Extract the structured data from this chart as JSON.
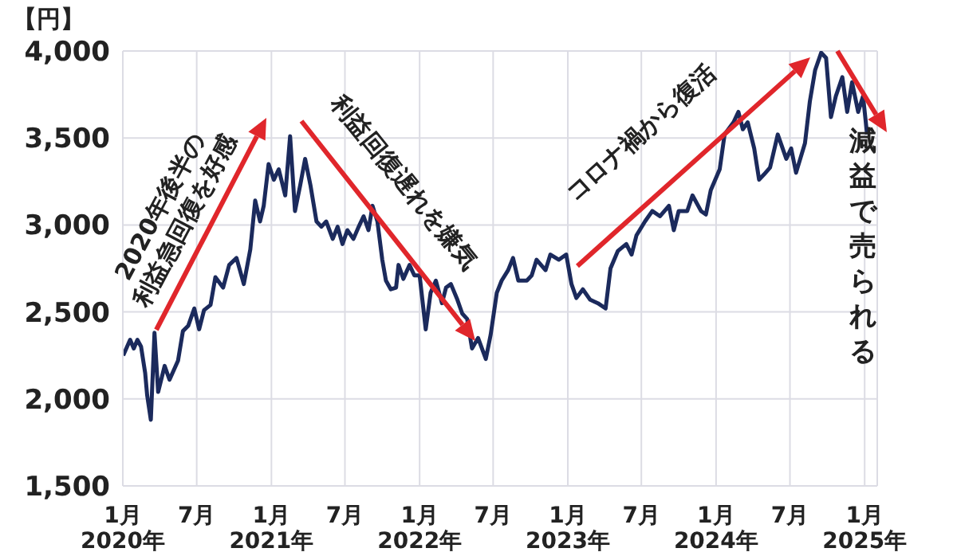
{
  "chart_data": {
    "type": "line",
    "ylabel": "【円】",
    "annotations": [
      "2020年後半の\n利益急回復を好感",
      {
        "text": "利益回復遅れを嫌気",
        "x": "2021-10-13",
        "y": 2970
      },
      "コロナ禍から復活",
      "減益で売られる"
    ],
    "x": [
      "2020-01-02",
      "2020-01-19",
      "2020-01-28",
      "2020-02-06",
      "2020-02-15",
      "2020-02-25",
      "2020-03-01",
      "2020-03-10",
      "2020-03-19",
      "2020-03-28",
      "2020-04-13",
      "2020-04-25",
      "2020-05-16",
      "2020-05-28",
      "2020-06-10",
      "2020-06-25",
      "2020-07-07",
      "2020-07-19",
      "2020-08-04",
      "2020-08-16",
      "2020-09-04",
      "2020-09-19",
      "2020-10-07",
      "2020-10-25",
      "2020-11-10",
      "2020-11-22",
      "2020-12-04",
      "2020-12-13",
      "2020-12-25",
      "2021-01-07",
      "2021-01-19",
      "2021-02-04",
      "2021-02-16",
      "2021-02-28",
      "2021-03-13",
      "2021-03-25",
      "2021-04-07",
      "2021-04-22",
      "2021-05-04",
      "2021-05-16",
      "2021-06-01",
      "2021-06-13",
      "2021-06-25",
      "2021-07-07",
      "2021-07-22",
      "2021-08-04",
      "2021-08-16",
      "2021-08-28",
      "2021-09-07",
      "2021-09-19",
      "2021-10-01",
      "2021-10-10",
      "2021-10-22",
      "2021-11-04",
      "2021-11-10",
      "2021-11-22",
      "2021-12-07",
      "2021-12-19",
      "2022-01-01",
      "2022-01-16",
      "2022-01-28",
      "2022-02-10",
      "2022-02-25",
      "2022-03-07",
      "2022-03-19",
      "2022-04-04",
      "2022-04-16",
      "2022-04-28",
      "2022-05-10",
      "2022-05-25",
      "2022-06-13",
      "2022-06-25",
      "2022-07-10",
      "2022-07-22",
      "2022-08-07",
      "2022-08-19",
      "2022-09-01",
      "2022-09-22",
      "2022-10-04",
      "2022-10-16",
      "2022-11-07",
      "2022-11-19",
      "2022-12-10",
      "2022-12-28",
      "2023-01-10",
      "2023-01-22",
      "2023-02-07",
      "2023-02-25",
      "2023-03-16",
      "2023-04-04",
      "2023-04-16",
      "2023-05-04",
      "2023-05-25",
      "2023-06-07",
      "2023-06-19",
      "2023-07-10",
      "2023-07-28",
      "2023-08-16",
      "2023-09-07",
      "2023-09-19",
      "2023-10-01",
      "2023-10-22",
      "2023-11-04",
      "2023-11-25",
      "2023-12-07",
      "2023-12-19",
      "2024-01-10",
      "2024-01-22",
      "2024-02-13",
      "2024-02-25",
      "2024-03-07",
      "2024-03-19",
      "2024-04-04",
      "2024-04-16",
      "2024-04-28",
      "2024-05-13",
      "2024-06-01",
      "2024-06-22",
      "2024-07-04",
      "2024-07-16",
      "2024-08-07",
      "2024-08-19",
      "2024-09-01",
      "2024-09-16",
      "2024-09-28",
      "2024-10-10",
      "2024-10-22",
      "2024-11-07",
      "2024-11-19",
      "2024-12-01",
      "2024-12-16",
      "2024-12-28",
      "2025-01-07"
    ],
    "series": [
      {
        "color": "#1b2a5c",
        "values": [
          2250,
          2340,
          2290,
          2340,
          2300,
          2150,
          2020,
          1880,
          2380,
          2040,
          2190,
          2110,
          2220,
          2390,
          2420,
          2520,
          2400,
          2510,
          2540,
          2700,
          2640,
          2770,
          2810,
          2660,
          2860,
          3140,
          3020,
          3110,
          3350,
          3260,
          3320,
          3170,
          3510,
          3080,
          3230,
          3380,
          3230,
          3020,
          2990,
          3020,
          2920,
          2990,
          2890,
          2970,
          2920,
          2990,
          3050,
          2970,
          3110,
          3020,
          2800,
          2680,
          2630,
          2640,
          2770,
          2690,
          2770,
          2710,
          2710,
          2400,
          2610,
          2680,
          2550,
          2640,
          2660,
          2570,
          2490,
          2460,
          2290,
          2350,
          2230,
          2370,
          2610,
          2680,
          2740,
          2810,
          2680,
          2680,
          2710,
          2800,
          2740,
          2830,
          2800,
          2830,
          2660,
          2580,
          2630,
          2570,
          2550,
          2520,
          2750,
          2850,
          2890,
          2830,
          2940,
          3020,
          3080,
          3050,
          3110,
          2970,
          3080,
          3080,
          3170,
          3080,
          3060,
          3200,
          3320,
          3520,
          3590,
          3650,
          3550,
          3590,
          3440,
          3260,
          3290,
          3330,
          3520,
          3380,
          3440,
          3300,
          3470,
          3710,
          3890,
          3990,
          3960,
          3620,
          3740,
          3850,
          3650,
          3820,
          3650,
          3740,
          3520
        ]
      }
    ],
    "xlim": [
      "2020-01-01",
      "2025-02-01"
    ],
    "xticks": [
      {
        "value": "2020-01",
        "label": "1月\n2020年"
      },
      {
        "value": "2020-07",
        "label": "7月"
      },
      {
        "value": "2021-01",
        "label": "1月\n2021年"
      },
      {
        "value": "2021-07",
        "label": "7月"
      },
      {
        "value": "2022-01",
        "label": "1月\n2022年"
      },
      {
        "value": "2022-07",
        "label": "7月"
      },
      {
        "value": "2023-01",
        "label": "1月\n2023年"
      },
      {
        "value": "2023-07",
        "label": "7月"
      },
      {
        "value": "2024-01",
        "label": "1月\n2024年"
      },
      {
        "value": "2024-07",
        "label": "7月"
      },
      {
        "value": "2025-01",
        "label": "1月\n2025年"
      }
    ],
    "ylim": [
      1500,
      4000
    ],
    "yticks": [
      {
        "value": 1500,
        "label": "1,500"
      },
      {
        "value": 2000,
        "label": "2,000"
      },
      {
        "value": 2500,
        "label": "2,500"
      },
      {
        "value": 3000,
        "label": "3,000"
      },
      {
        "value": 3500,
        "label": "3,500"
      },
      {
        "value": 4000,
        "label": "4,000"
      }
    ],
    "grid": true,
    "legend": false,
    "marker": "none",
    "line_style": "solid"
  }
}
